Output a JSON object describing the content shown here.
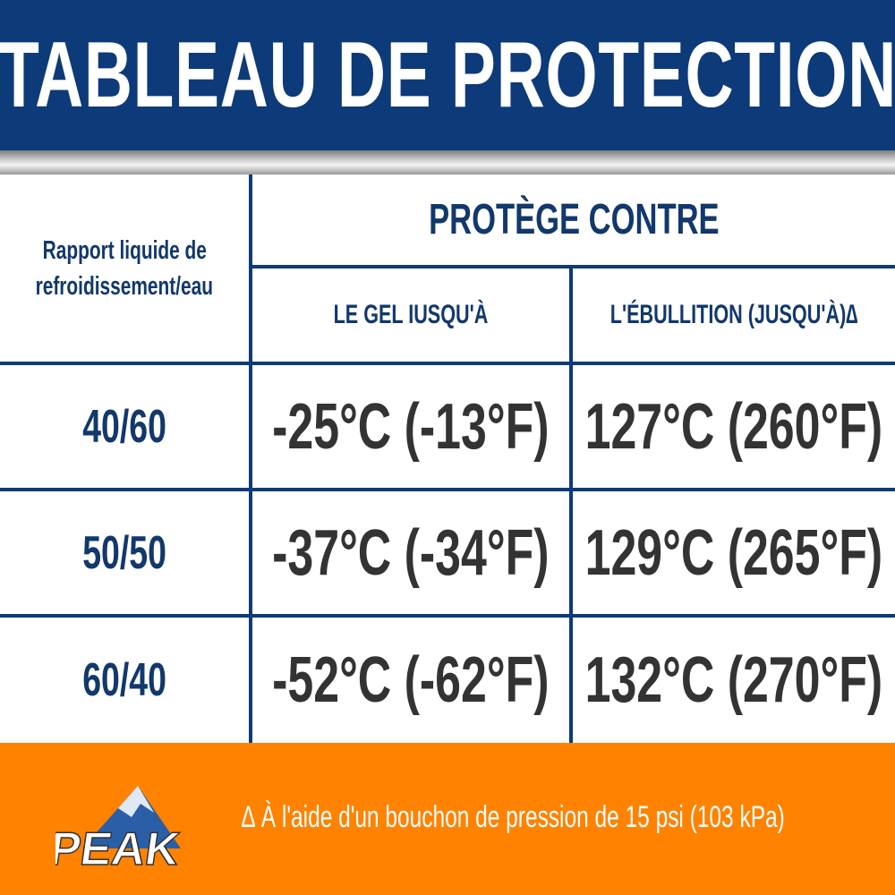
{
  "title": "TABLEAU DE PROTECTION",
  "table": {
    "ratio_header": [
      "Rapport liquide de",
      "refroidissement/eau"
    ],
    "group_header": "PROTÈGE CONTRE",
    "columns": [
      "LE GEL IUSQU'À",
      "L'ÉBULLITION (JUSQU'À)∆"
    ],
    "rows": [
      {
        "ratio": "40/60",
        "freeze": "-25°C (-13°F)",
        "boil": "127°C (260°F)"
      },
      {
        "ratio": "50/50",
        "freeze": "-37°C (-34°F)",
        "boil": "129°C (265°F)"
      },
      {
        "ratio": "60/40",
        "freeze": "-52°C (-62°F)",
        "boil": "132°C (270°F)"
      }
    ]
  },
  "footer": {
    "logo": "PEAK",
    "note": "∆ À l'aide d'un bouchon de pression de 15 psi (103 kPa)"
  },
  "colors": {
    "header": "#0d3a78",
    "footer": "#ff8200",
    "text_navy": "#12386c"
  }
}
